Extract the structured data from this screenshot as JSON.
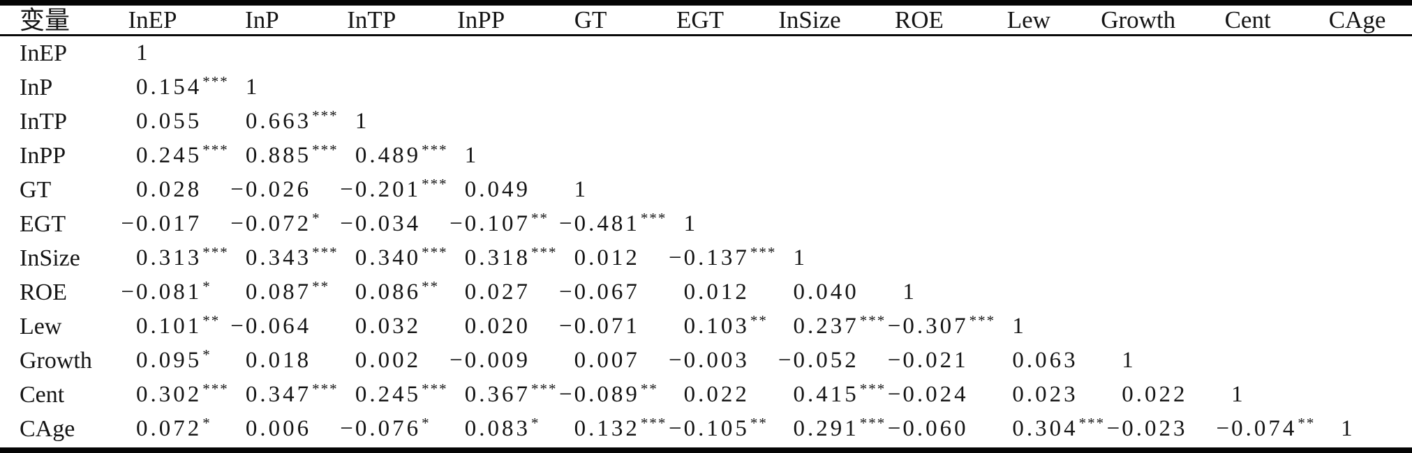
{
  "table": {
    "header": [
      "变量",
      "InEP",
      "InP",
      "InTP",
      "InPP",
      "GT",
      "EGT",
      "InSize",
      "ROE",
      "Lew",
      "Growth",
      "Cent",
      "CAge"
    ],
    "significance_marks": [
      "*",
      "**",
      "***"
    ],
    "rows": [
      {
        "label": "InEP",
        "cells": [
          {
            "value": "1",
            "sig": ""
          }
        ]
      },
      {
        "label": "InP",
        "cells": [
          {
            "value": "0.154",
            "sig": "***"
          },
          {
            "value": "1",
            "sig": ""
          }
        ]
      },
      {
        "label": "InTP",
        "cells": [
          {
            "value": "0.055",
            "sig": ""
          },
          {
            "value": "0.663",
            "sig": "***"
          },
          {
            "value": "1",
            "sig": ""
          }
        ]
      },
      {
        "label": "InPP",
        "cells": [
          {
            "value": "0.245",
            "sig": "***"
          },
          {
            "value": "0.885",
            "sig": "***"
          },
          {
            "value": "0.489",
            "sig": "***"
          },
          {
            "value": "1",
            "sig": ""
          }
        ]
      },
      {
        "label": "GT",
        "cells": [
          {
            "value": "0.028",
            "sig": ""
          },
          {
            "value": "-0.026",
            "sig": ""
          },
          {
            "value": "-0.201",
            "sig": "***"
          },
          {
            "value": "0.049",
            "sig": ""
          },
          {
            "value": "1",
            "sig": ""
          }
        ]
      },
      {
        "label": "EGT",
        "cells": [
          {
            "value": "-0.017",
            "sig": ""
          },
          {
            "value": "-0.072",
            "sig": "*"
          },
          {
            "value": "-0.034",
            "sig": ""
          },
          {
            "value": "-0.107",
            "sig": "**"
          },
          {
            "value": "-0.481",
            "sig": "***"
          },
          {
            "value": "1",
            "sig": ""
          }
        ]
      },
      {
        "label": "InSize",
        "cells": [
          {
            "value": "0.313",
            "sig": "***"
          },
          {
            "value": "0.343",
            "sig": "***"
          },
          {
            "value": "0.340",
            "sig": "***"
          },
          {
            "value": "0.318",
            "sig": "***"
          },
          {
            "value": "0.012",
            "sig": ""
          },
          {
            "value": "-0.137",
            "sig": "***"
          },
          {
            "value": "1",
            "sig": ""
          }
        ]
      },
      {
        "label": "ROE",
        "cells": [
          {
            "value": "-0.081",
            "sig": "*"
          },
          {
            "value": "0.087",
            "sig": "**"
          },
          {
            "value": "0.086",
            "sig": "**"
          },
          {
            "value": "0.027",
            "sig": ""
          },
          {
            "value": "-0.067",
            "sig": ""
          },
          {
            "value": "0.012",
            "sig": ""
          },
          {
            "value": "0.040",
            "sig": ""
          },
          {
            "value": "1",
            "sig": ""
          }
        ]
      },
      {
        "label": "Lew",
        "cells": [
          {
            "value": "0.101",
            "sig": "**"
          },
          {
            "value": "-0.064",
            "sig": ""
          },
          {
            "value": "0.032",
            "sig": ""
          },
          {
            "value": "0.020",
            "sig": ""
          },
          {
            "value": "-0.071",
            "sig": ""
          },
          {
            "value": "0.103",
            "sig": "**"
          },
          {
            "value": "0.237",
            "sig": "***"
          },
          {
            "value": "-0.307",
            "sig": "***"
          },
          {
            "value": "1",
            "sig": ""
          }
        ]
      },
      {
        "label": "Growth",
        "cells": [
          {
            "value": "0.095",
            "sig": "*"
          },
          {
            "value": "0.018",
            "sig": ""
          },
          {
            "value": "0.002",
            "sig": ""
          },
          {
            "value": "-0.009",
            "sig": ""
          },
          {
            "value": "0.007",
            "sig": ""
          },
          {
            "value": "-0.003",
            "sig": ""
          },
          {
            "value": "-0.052",
            "sig": ""
          },
          {
            "value": "-0.021",
            "sig": ""
          },
          {
            "value": "0.063",
            "sig": ""
          },
          {
            "value": "1",
            "sig": ""
          }
        ]
      },
      {
        "label": "Cent",
        "cells": [
          {
            "value": "0.302",
            "sig": "***"
          },
          {
            "value": "0.347",
            "sig": "***"
          },
          {
            "value": "0.245",
            "sig": "***"
          },
          {
            "value": "0.367",
            "sig": "***"
          },
          {
            "value": "-0.089",
            "sig": "**"
          },
          {
            "value": "0.022",
            "sig": ""
          },
          {
            "value": "0.415",
            "sig": "***"
          },
          {
            "value": "-0.024",
            "sig": ""
          },
          {
            "value": "0.023",
            "sig": ""
          },
          {
            "value": "0.022",
            "sig": ""
          },
          {
            "value": "1",
            "sig": ""
          }
        ]
      },
      {
        "label": "CAge",
        "cells": [
          {
            "value": "0.072",
            "sig": "*"
          },
          {
            "value": "0.006",
            "sig": ""
          },
          {
            "value": "-0.076",
            "sig": "*"
          },
          {
            "value": "0.083",
            "sig": "*"
          },
          {
            "value": "0.132",
            "sig": "***"
          },
          {
            "value": "-0.105",
            "sig": "**"
          },
          {
            "value": "0.291",
            "sig": "***"
          },
          {
            "value": "-0.060",
            "sig": ""
          },
          {
            "value": "0.304",
            "sig": "***"
          },
          {
            "value": "-0.023",
            "sig": ""
          },
          {
            "value": "-0.074",
            "sig": "**"
          },
          {
            "value": "1",
            "sig": ""
          }
        ]
      }
    ]
  }
}
